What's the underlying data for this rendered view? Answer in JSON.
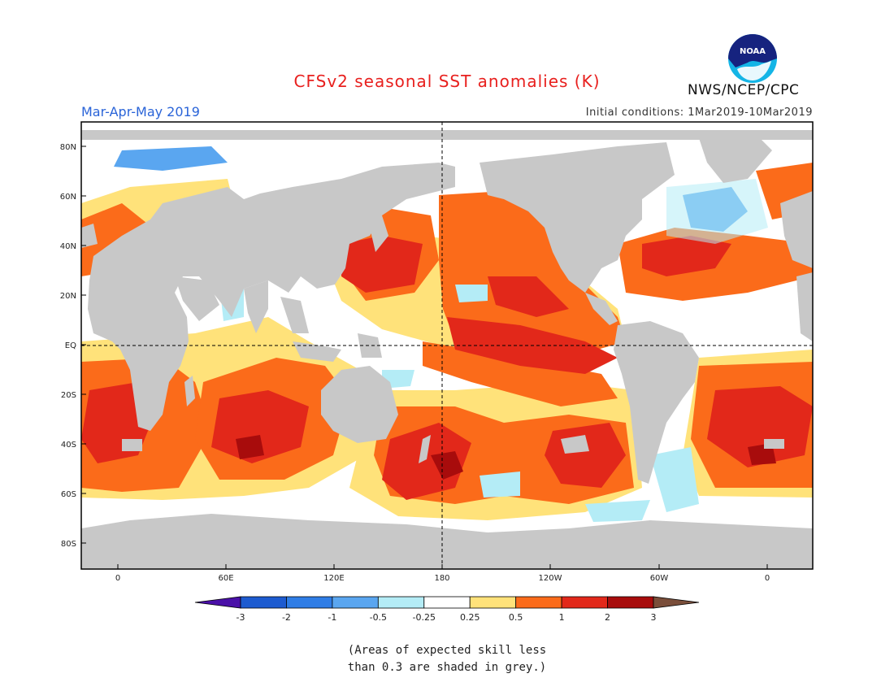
{
  "header": {
    "title": "CFSv2 seasonal SST anomalies (K)",
    "period": "Mar-Apr-May 2019",
    "initial_conditions": "Initial conditions: 1Mar2019-10Mar2019",
    "agency": "NWS/NCEP/CPC",
    "logo_text": "NOAA"
  },
  "map": {
    "lat_labels": [
      "80N",
      "60N",
      "40N",
      "20N",
      "EQ",
      "20S",
      "40S",
      "60S",
      "80S"
    ],
    "lon_labels": [
      "0",
      "60E",
      "120E",
      "180",
      "120W",
      "60W",
      "0"
    ],
    "land_color": "#c8c8c8"
  },
  "colorbar": {
    "labels": [
      "-3",
      "-2",
      "-1",
      "-0.5",
      "-0.25",
      "0.25",
      "0.5",
      "1",
      "2",
      "3"
    ],
    "colors": [
      "#4a10a8",
      "#1d5bd0",
      "#2f7de6",
      "#5aa6f0",
      "#b4ecf6",
      "#ffffff",
      "#ffe27a",
      "#fb6b1a",
      "#e2281a",
      "#a80c0c",
      "#7a4e3a"
    ]
  },
  "note": {
    "line1": "(Areas of expected skill less",
    "line2": "than 0.3 are shaded in grey.)"
  }
}
